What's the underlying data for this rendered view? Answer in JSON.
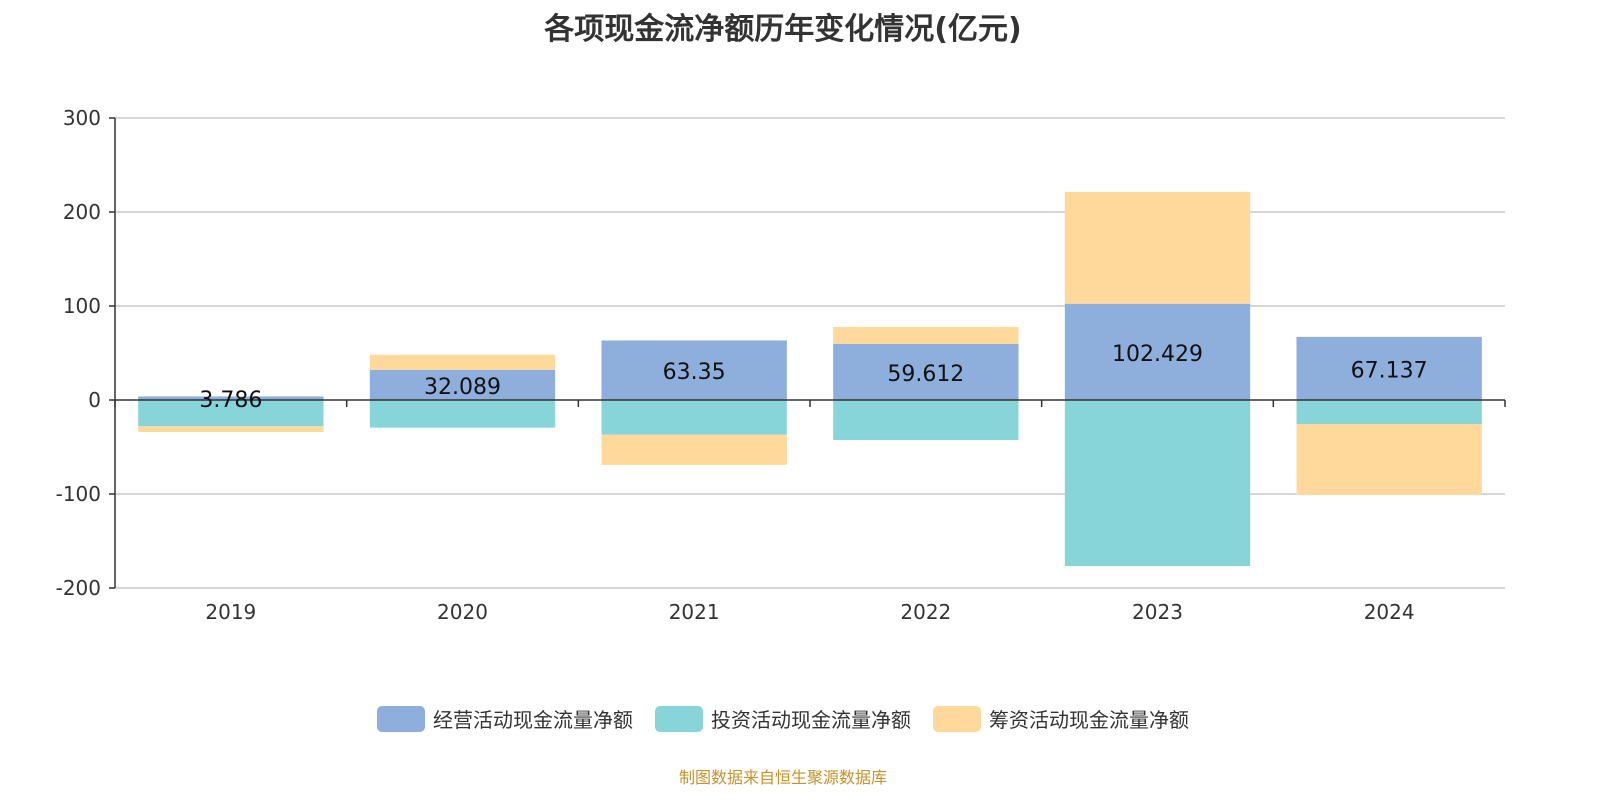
{
  "chart_data": {
    "type": "bar",
    "stacked": true,
    "title": "各项现金流净额历年变化情况(亿元)",
    "categories": [
      "2019",
      "2020",
      "2021",
      "2022",
      "2023",
      "2024"
    ],
    "ylim": [
      -200,
      300
    ],
    "yticks": [
      -200,
      -100,
      0,
      100,
      200,
      300
    ],
    "grid": true,
    "legend_position": "bottom",
    "series": [
      {
        "name": "经营活动现金流量净额",
        "color": "#8eaedb",
        "values": [
          3.786,
          32.089,
          63.35,
          59.612,
          102.429,
          67.137
        ],
        "labels": [
          "3.786",
          "32.089",
          "63.35",
          "59.612",
          "102.429",
          "67.137"
        ]
      },
      {
        "name": "投资活动现金流量净额",
        "color": "#87d5d9",
        "values": [
          -27.7,
          -29.4,
          -37,
          -42.5,
          -176.6,
          -25.5
        ]
      },
      {
        "name": "筹资活动现金流量净额",
        "color": "#fed99b",
        "values": [
          -6.4,
          16,
          -32,
          18,
          119,
          -75.5
        ]
      }
    ]
  },
  "source": "制图数据来自恒生聚源数据库"
}
